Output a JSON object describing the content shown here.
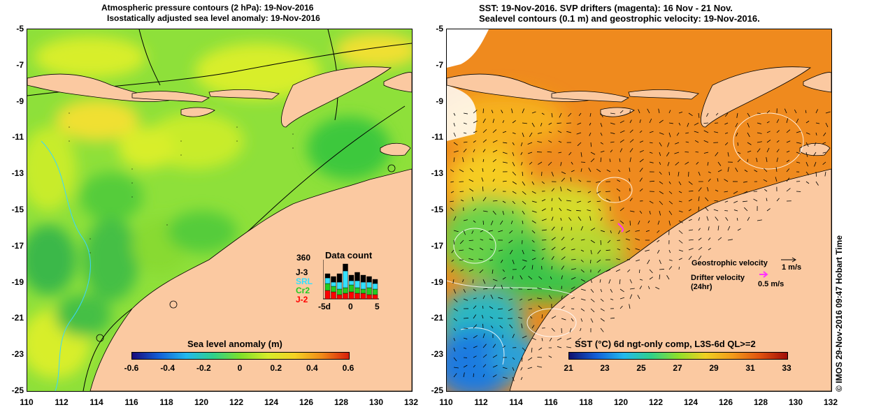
{
  "left": {
    "title_line1": "Atmospheric pressure contours (2 hPa): 19-Nov-2016",
    "title_line2": "Isostatically adjusted sea level anomaly: 19-Nov-2016",
    "colorbar": {
      "title": "Sea level anomaly (m)",
      "labels": [
        "-0.6",
        "-0.4",
        "-0.2",
        "0",
        "0.2",
        "0.4",
        "0.6"
      ],
      "range": [
        -0.6,
        0.6
      ]
    },
    "data_count": {
      "title": "Data count",
      "max": "360",
      "series": [
        "J-3",
        "SRL",
        "Cr2",
        "J-2"
      ],
      "series_colors": [
        "#000000",
        "#33e0ff",
        "#22cc22",
        "#ff0000"
      ],
      "xlabels": [
        "-5d",
        "0",
        "5"
      ]
    }
  },
  "right": {
    "title_line1": "SST: 19-Nov-2016. SVP drifters (magenta): 16 Nov - 21 Nov.",
    "title_line2": "Sealevel contours (0.1 m) and geostrophic velocity: 19-Nov-2016.",
    "colorbar": {
      "title": "SST (°C) 6d ngt-only comp, L3S-6d QL>=2",
      "labels": [
        "21",
        "23",
        "25",
        "27",
        "29",
        "31",
        "33"
      ],
      "range": [
        21,
        33
      ]
    },
    "legend": {
      "geo_label": "Geostrophic velocity",
      "geo_scale": "1 m/s",
      "drifter_label_1": "Drifter velocity",
      "drifter_label_2": "(24hr)",
      "drifter_scale": "0.5 m/s"
    },
    "credit": "© IMOS 29-Nov-2016 09:47 Hobart Time"
  },
  "axes": {
    "lat_labels": [
      "-5",
      "-7",
      "-9",
      "-11",
      "-13",
      "-15",
      "-17",
      "-19",
      "-21",
      "-23",
      "-25"
    ],
    "lon_labels": [
      "110",
      "112",
      "114",
      "116",
      "118",
      "120",
      "122",
      "124",
      "126",
      "128",
      "130",
      "132"
    ],
    "lat_range": [
      -25,
      -5
    ],
    "lon_range": [
      110,
      132
    ]
  },
  "colors": {
    "land": "#fbc9a1",
    "sla_bg": "#7fe02a",
    "sst_bg": "#ef8a1e"
  }
}
